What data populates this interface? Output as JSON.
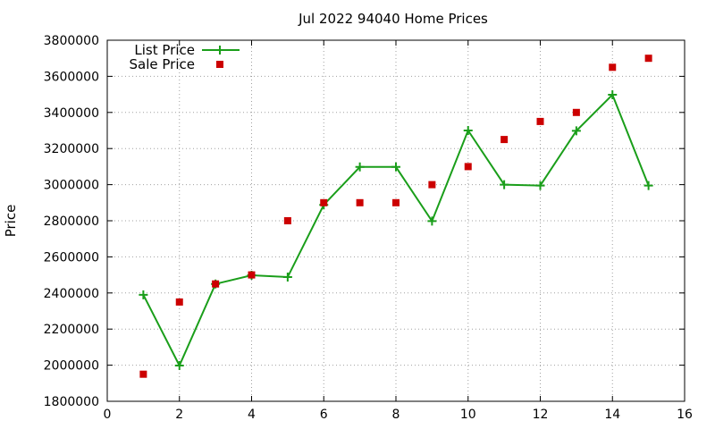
{
  "chart_data": {
    "type": "line",
    "title": "Jul 2022 94040 Home Prices",
    "xlabel": "",
    "ylabel": "Price",
    "xlim": [
      0,
      16
    ],
    "ylim": [
      1800000,
      3800000
    ],
    "x_ticks": [
      0,
      2,
      4,
      6,
      8,
      10,
      12,
      14,
      16
    ],
    "y_ticks": [
      1800000,
      2000000,
      2200000,
      2400000,
      2600000,
      2800000,
      3000000,
      3200000,
      3400000,
      3600000,
      3800000
    ],
    "grid": true,
    "legend_position": "top-left",
    "series": [
      {
        "name": "List Price",
        "style": "line+cross",
        "color": "#1a9e1a",
        "x": [
          1,
          2,
          3,
          4,
          5,
          6,
          7,
          8,
          9,
          10,
          11,
          12,
          13,
          14,
          15
        ],
        "values": [
          2390000,
          1998000,
          2450000,
          2498000,
          2488000,
          2888000,
          3098000,
          3098000,
          2798000,
          3300000,
          3000000,
          2995000,
          3298000,
          3498000,
          2995000
        ]
      },
      {
        "name": "Sale Price",
        "style": "square",
        "color": "#cc0000",
        "x": [
          1,
          2,
          3,
          4,
          5,
          6,
          7,
          8,
          9,
          10,
          11,
          12,
          13,
          14,
          15
        ],
        "values": [
          1950000,
          2350000,
          2450000,
          2500000,
          2800000,
          2900000,
          2900000,
          2900000,
          3000000,
          3100000,
          3250000,
          3350000,
          3400000,
          3650000,
          3700000
        ]
      }
    ]
  }
}
